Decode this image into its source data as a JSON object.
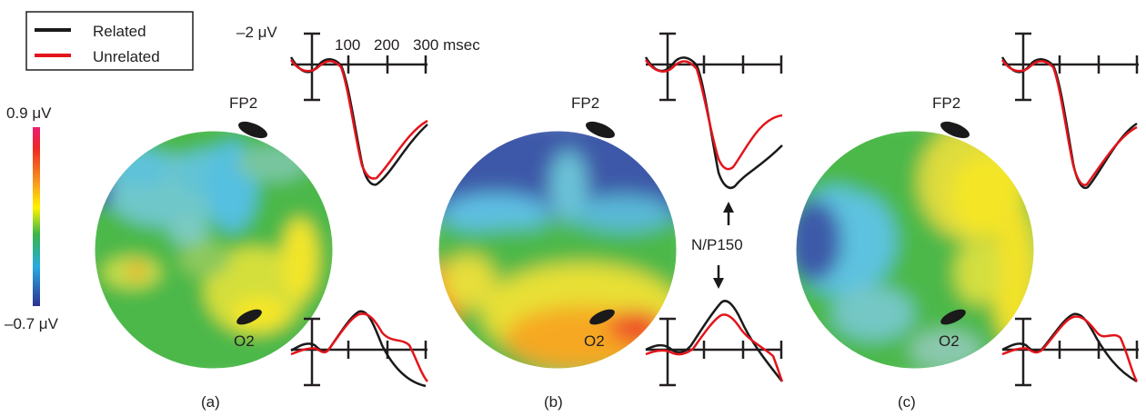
{
  "legend": {
    "items": [
      {
        "label": "Related",
        "color": "#1a1a1a"
      },
      {
        "label": "Unrelated",
        "color": "#e3141b"
      }
    ]
  },
  "color_scale": {
    "max_label": "0.9 μV",
    "min_label": "–0.7 μV",
    "max_value": 0.9,
    "min_value": -0.7,
    "colors_top_to_bottom": [
      "#ec1f73",
      "#ed2a24",
      "#f7941d",
      "#fff200",
      "#39b54a",
      "#27aae1",
      "#2e3192"
    ]
  },
  "axis_labels": {
    "amplitude": "–2 μV",
    "ticks": [
      "100",
      "200",
      "300 msec"
    ]
  },
  "electrodes": {
    "frontal": "FP2",
    "occipital": "O2"
  },
  "annotation": {
    "component": "N/P150"
  },
  "panels": [
    {
      "id": "a",
      "label": "(a)"
    },
    {
      "id": "b",
      "label": "(b)"
    },
    {
      "id": "c",
      "label": "(c)"
    }
  ]
}
